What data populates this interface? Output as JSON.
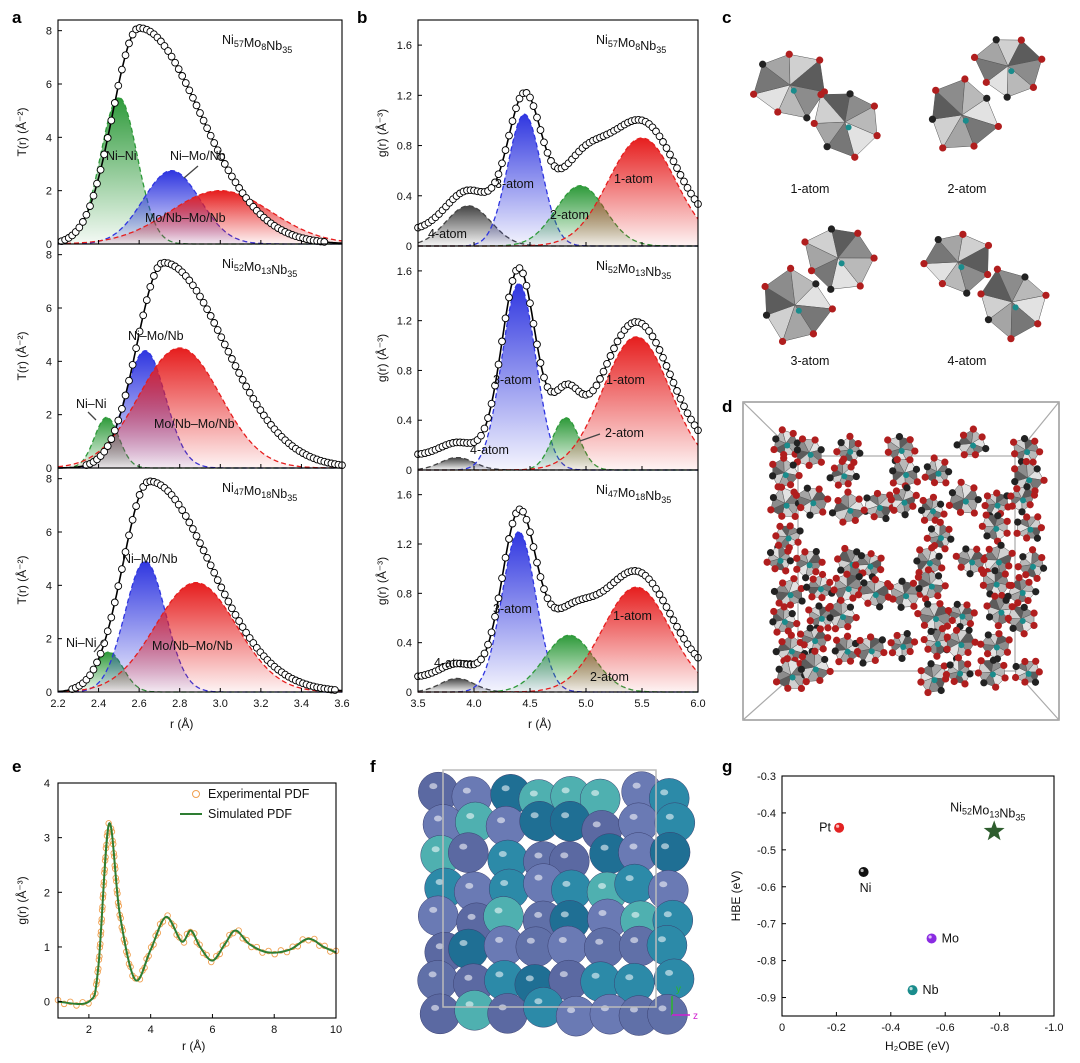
{
  "panel_letters": [
    "a",
    "b",
    "c",
    "d",
    "e",
    "f",
    "g"
  ],
  "panel_a": {
    "xlabel": "r (Å)",
    "ylabel": "T(r) (Å⁻²)",
    "xticks": [
      "2.2",
      "2.4",
      "2.6",
      "2.8",
      "3.0",
      "3.2",
      "3.4",
      "3.6"
    ],
    "yticks": [
      "0",
      "2",
      "4",
      "6",
      "8"
    ],
    "subplots": [
      {
        "composition": "Ni57Mo8Nb35",
        "labels": [
          "Ni–Ni",
          "Ni–Mo/Nb",
          "Mo/Nb–Mo/Nb"
        ]
      },
      {
        "composition": "Ni52Mo13Nb35",
        "labels": [
          "Ni–Ni",
          "Ni–Mo/Nb",
          "Mo/Nb–Mo/Nb"
        ]
      },
      {
        "composition": "Ni47Mo18Nb35",
        "labels": [
          "Ni–Ni",
          "Ni–Mo/Nb",
          "Mo/Nb–Mo/Nb"
        ]
      }
    ]
  },
  "panel_b": {
    "xlabel": "r (Å)",
    "ylabel": "g(r) (Å⁻³)",
    "xticks": [
      "3.5",
      "4.0",
      "4.5",
      "5.0",
      "5.5",
      "6.0"
    ],
    "yticks": [
      "0",
      "0.4",
      "0.8",
      "1.2",
      "1.6"
    ],
    "subplots": [
      {
        "composition": "Ni57Mo8Nb35",
        "labels": [
          "3-atom",
          "1-atom",
          "2-atom",
          "4-atom"
        ]
      },
      {
        "composition": "Ni52Mo13Nb35",
        "labels": [
          "3-atom",
          "1-atom",
          "2-atom",
          "4-atom"
        ]
      },
      {
        "composition": "Ni47Mo18Nb35",
        "labels": [
          "3-atom",
          "1-atom",
          "2-atom",
          "4-atom"
        ]
      }
    ]
  },
  "panel_c": {
    "labels": [
      "1-atom",
      "2-atom",
      "3-atom",
      "4-atom"
    ]
  },
  "panel_e": {
    "xlabel": "r (Å)",
    "ylabel": "g(r) (Å⁻³)",
    "xticks": [
      "2",
      "4",
      "6",
      "8",
      "10"
    ],
    "yticks": [
      "0",
      "1",
      "2",
      "3",
      "4"
    ],
    "legend": [
      "Experimental PDF",
      "Simulated PDF"
    ]
  },
  "panel_f": {
    "axis_labels": [
      "y",
      "z"
    ]
  },
  "panel_g": {
    "xlabel": "H₂OBE (eV)",
    "ylabel": "HBE (eV)",
    "xticks": [
      "0",
      "-0.2",
      "-0.4",
      "-0.6",
      "-0.8",
      "-1.0"
    ],
    "yticks": [
      "-0.3",
      "-0.4",
      "-0.5",
      "-0.6",
      "-0.7",
      "-0.8",
      "-0.9"
    ],
    "star_label": "Ni52Mo13Nb35"
  },
  "chart_data": [
    {
      "type": "area",
      "panel": "a1",
      "title": "Ni57Mo8Nb35",
      "xlabel": "r (Å)",
      "ylabel": "T(r) (Å⁻²)",
      "xlim": [
        2.2,
        3.6
      ],
      "ylim": [
        0,
        8.4
      ],
      "peaks": [
        {
          "name": "Ni–Ni",
          "center": 2.5,
          "height": 5.5,
          "width": 0.09,
          "color": "#2e9a3a"
        },
        {
          "name": "Ni–Mo/Nb",
          "center": 2.76,
          "height": 2.75,
          "width": 0.14,
          "color": "#2f36e0"
        },
        {
          "name": "Mo/Nb–Mo/Nb",
          "center": 3.0,
          "height": 2.0,
          "width": 0.25,
          "color": "#e61e1e"
        }
      ],
      "total": {
        "center": 2.6,
        "height": 8.1
      }
    },
    {
      "type": "area",
      "panel": "a2",
      "title": "Ni52Mo13Nb35",
      "xlabel": "r (Å)",
      "ylabel": "T(r) (Å⁻²)",
      "xlim": [
        2.2,
        3.6
      ],
      "ylim": [
        0,
        8.4
      ],
      "peaks": [
        {
          "name": "Ni–Ni",
          "center": 2.44,
          "height": 1.9,
          "width": 0.06,
          "color": "#2e9a3a"
        },
        {
          "name": "Ni–Mo/Nb",
          "center": 2.63,
          "height": 4.4,
          "width": 0.1,
          "color": "#2f36e0"
        },
        {
          "name": "Mo/Nb–Mo/Nb",
          "center": 2.8,
          "height": 4.5,
          "width": 0.2,
          "color": "#e61e1e"
        }
      ],
      "total": {
        "center": 2.72,
        "height": 7.7
      }
    },
    {
      "type": "area",
      "panel": "a3",
      "title": "Ni47Mo18Nb35",
      "xlabel": "r (Å)",
      "ylabel": "T(r) (Å⁻²)",
      "xlim": [
        2.2,
        3.6
      ],
      "ylim": [
        0,
        8.4
      ],
      "peaks": [
        {
          "name": "Ni–Ni",
          "center": 2.45,
          "height": 1.5,
          "width": 0.07,
          "color": "#2e9a3a"
        },
        {
          "name": "Ni–Mo/Nb",
          "center": 2.63,
          "height": 4.9,
          "width": 0.1,
          "color": "#2f36e0"
        },
        {
          "name": "Mo/Nb–Mo/Nb",
          "center": 2.88,
          "height": 4.1,
          "width": 0.2,
          "color": "#e61e1e"
        }
      ],
      "total": {
        "center": 2.65,
        "height": 7.9
      }
    },
    {
      "type": "area",
      "panel": "b1",
      "title": "Ni57Mo8Nb35",
      "xlabel": "r (Å)",
      "ylabel": "g(r) (Å⁻³)",
      "xlim": [
        3.5,
        6.0
      ],
      "ylim": [
        0,
        1.8
      ],
      "peaks": [
        {
          "name": "4-atom",
          "center": 3.95,
          "height": 0.32,
          "width": 0.2,
          "color": "#444444"
        },
        {
          "name": "3-atom",
          "center": 4.45,
          "height": 1.05,
          "width": 0.15,
          "color": "#2f36e0"
        },
        {
          "name": "2-atom",
          "center": 4.95,
          "height": 0.48,
          "width": 0.22,
          "color": "#2e9a3a"
        },
        {
          "name": "1-atom",
          "center": 5.5,
          "height": 0.86,
          "width": 0.3,
          "color": "#e61e1e"
        }
      ]
    },
    {
      "type": "area",
      "panel": "b2",
      "title": "Ni52Mo13Nb35",
      "xlabel": "r (Å)",
      "ylabel": "g(r) (Å⁻³)",
      "xlim": [
        3.5,
        6.0
      ],
      "ylim": [
        0,
        1.8
      ],
      "peaks": [
        {
          "name": "4-atom",
          "center": 3.85,
          "height": 0.1,
          "width": 0.15,
          "color": "#444444"
        },
        {
          "name": "3-atom",
          "center": 4.4,
          "height": 1.5,
          "width": 0.15,
          "color": "#2f36e0"
        },
        {
          "name": "2-atom",
          "center": 4.82,
          "height": 0.42,
          "width": 0.12,
          "color": "#2e9a3a"
        },
        {
          "name": "1-atom",
          "center": 5.45,
          "height": 1.07,
          "width": 0.3,
          "color": "#e61e1e"
        }
      ]
    },
    {
      "type": "area",
      "panel": "b3",
      "title": "Ni47Mo18Nb35",
      "xlabel": "r (Å)",
      "ylabel": "g(r) (Å⁻³)",
      "xlim": [
        3.5,
        6.0
      ],
      "ylim": [
        0,
        1.8
      ],
      "peaks": [
        {
          "name": "4-atom",
          "center": 3.85,
          "height": 0.11,
          "width": 0.15,
          "color": "#444444"
        },
        {
          "name": "3-atom",
          "center": 4.4,
          "height": 1.3,
          "width": 0.15,
          "color": "#2f36e0"
        },
        {
          "name": "2-atom",
          "center": 4.85,
          "height": 0.46,
          "width": 0.22,
          "color": "#2e9a3a"
        },
        {
          "name": "1-atom",
          "center": 5.45,
          "height": 0.85,
          "width": 0.3,
          "color": "#e61e1e"
        }
      ]
    },
    {
      "type": "line",
      "panel": "e",
      "xlabel": "r (Å)",
      "ylabel": "g(r) (Å⁻³)",
      "xlim": [
        1,
        10
      ],
      "ylim": [
        -0.3,
        4
      ],
      "series": [
        {
          "name": "Experimental PDF",
          "color": "#f0a050"
        },
        {
          "name": "Simulated PDF",
          "color": "#2e7d32"
        }
      ],
      "x": [
        1.0,
        2.0,
        2.3,
        2.65,
        3.0,
        3.5,
        4.0,
        4.5,
        5.0,
        5.3,
        5.6,
        6.0,
        6.4,
        6.75,
        7.2,
        7.8,
        8.5,
        9.1,
        9.6,
        10.0
      ],
      "y": [
        0,
        0,
        0.6,
        3.25,
        1.6,
        0.4,
        0.95,
        1.55,
        1.1,
        1.3,
        1.0,
        0.75,
        1.05,
        1.3,
        1.05,
        0.9,
        0.95,
        1.15,
        1.0,
        0.9
      ]
    },
    {
      "type": "scatter",
      "panel": "g",
      "xlabel": "H₂OBE (eV)",
      "ylabel": "HBE (eV)",
      "xlim": [
        0,
        -1.0
      ],
      "ylim": [
        -0.95,
        -0.3
      ],
      "points": [
        {
          "label": "Pt",
          "x": -0.21,
          "y": -0.44,
          "color": "#e32222",
          "marker": "circle"
        },
        {
          "label": "Ni",
          "x": -0.3,
          "y": -0.56,
          "color": "#111111",
          "marker": "circle"
        },
        {
          "label": "Mo",
          "x": -0.55,
          "y": -0.74,
          "color": "#8a2be2",
          "marker": "circle"
        },
        {
          "label": "Nb",
          "x": -0.48,
          "y": -0.88,
          "color": "#1a8c8c",
          "marker": "circle"
        },
        {
          "label": "Ni52Mo13Nb35",
          "x": -0.78,
          "y": -0.45,
          "color": "#2e5d2e",
          "marker": "star"
        }
      ]
    }
  ]
}
